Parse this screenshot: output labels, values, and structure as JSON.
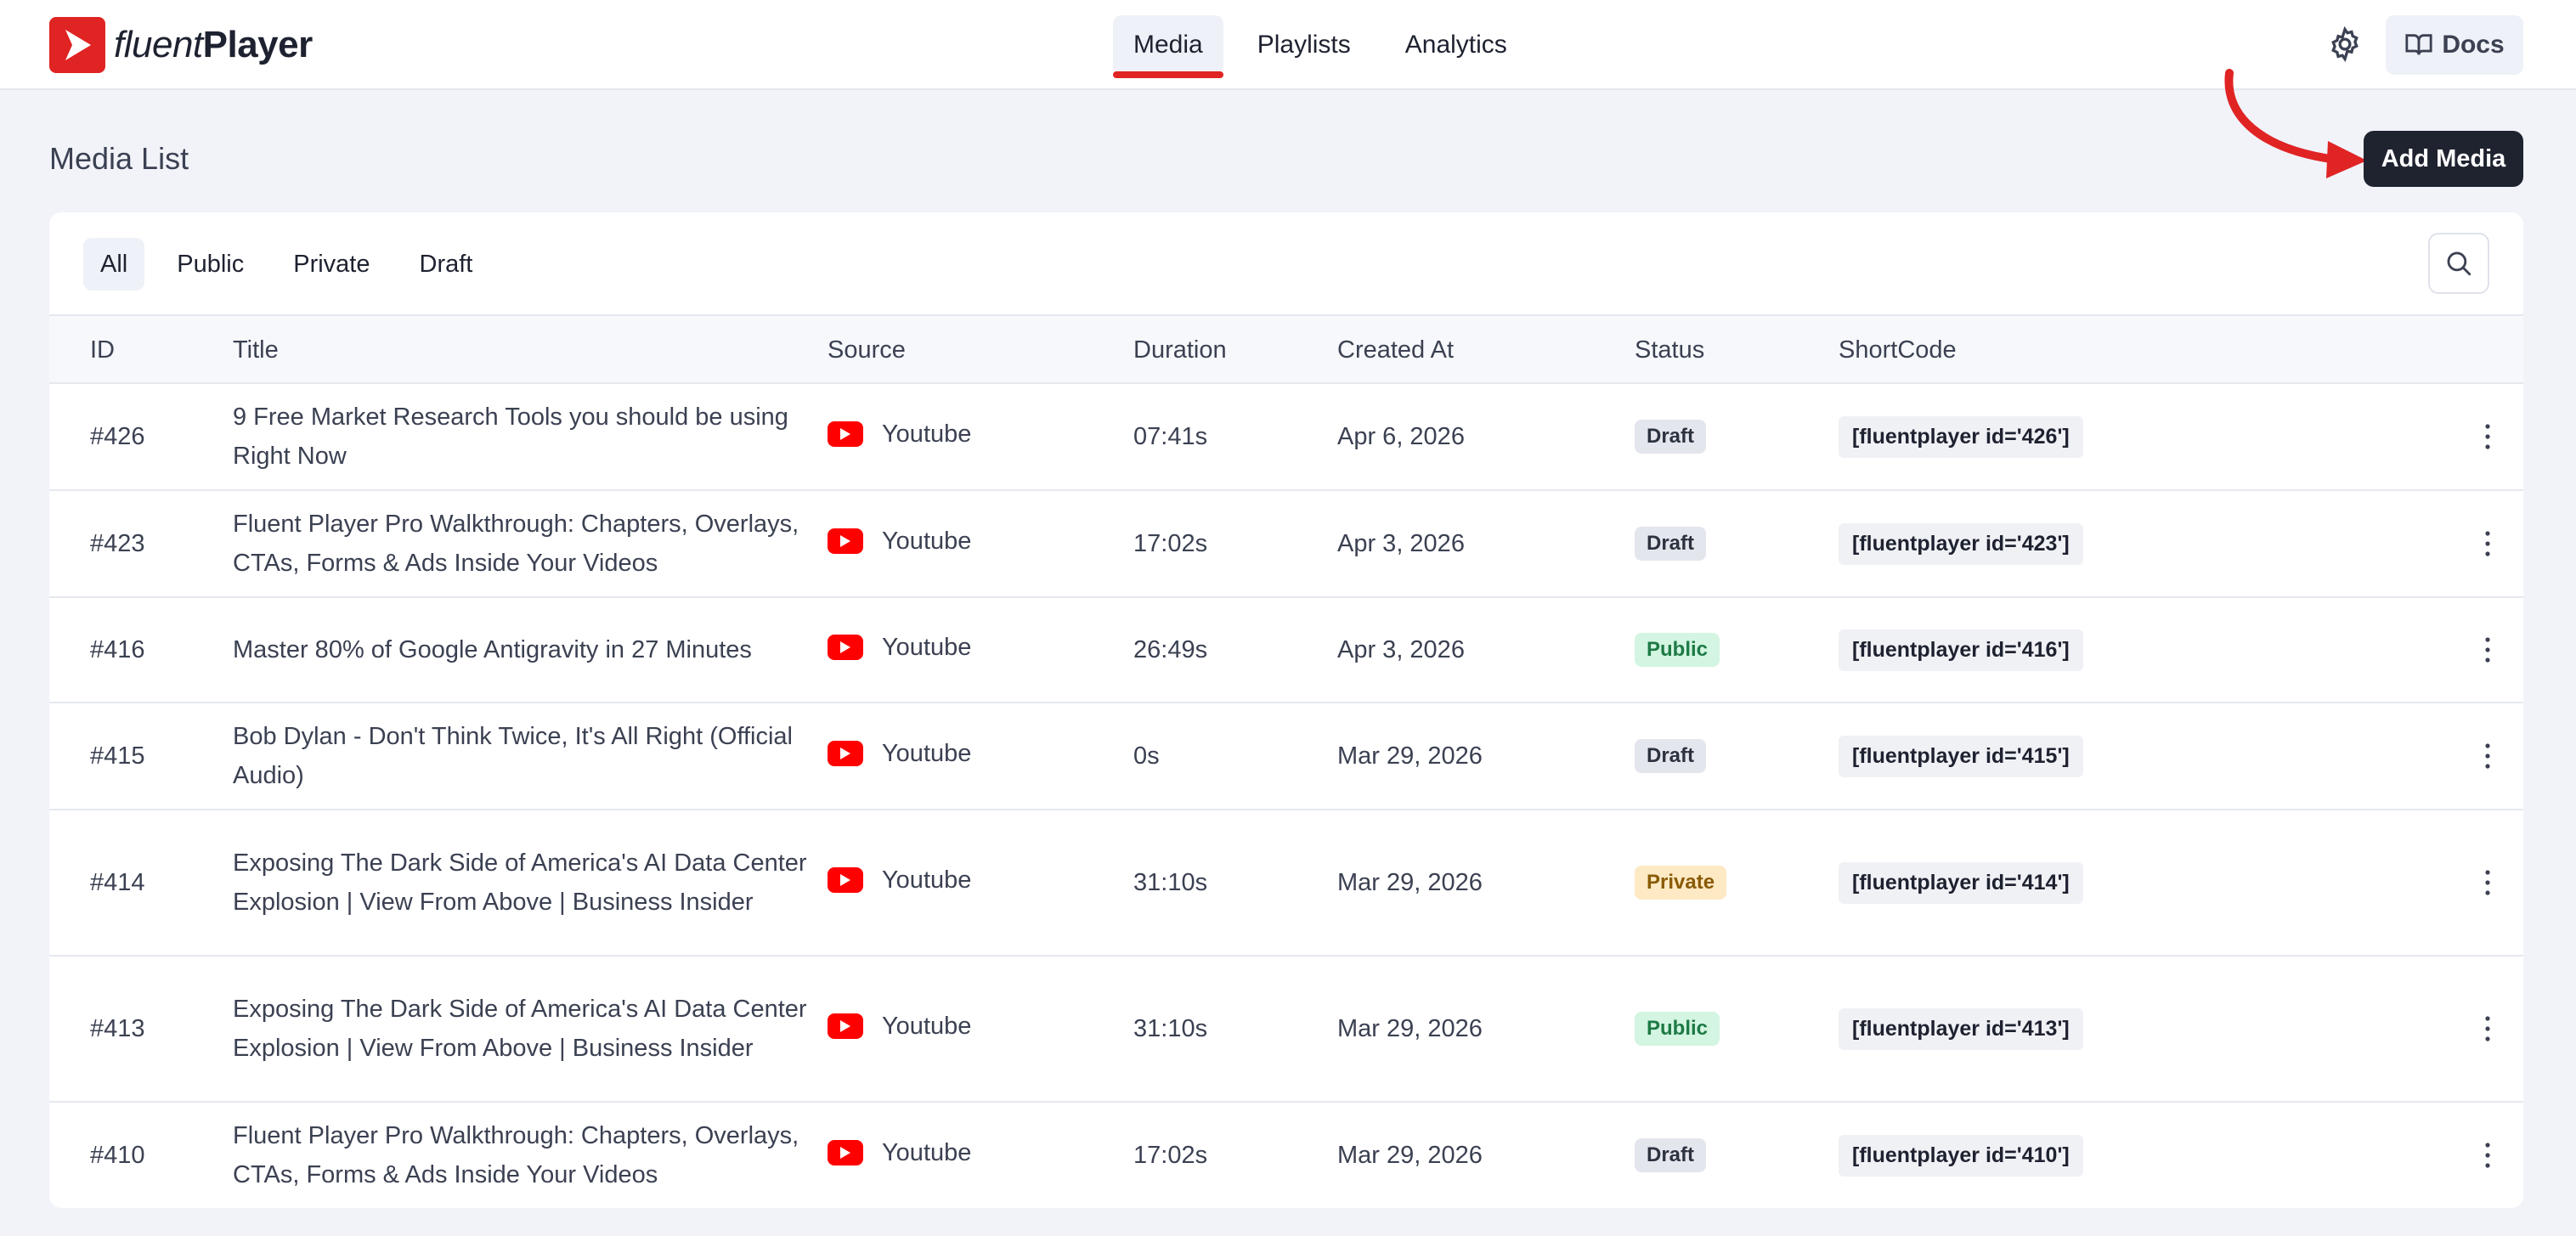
{
  "brand": {
    "name_light": "fluent",
    "name_bold": "Player",
    "color": "#e02424"
  },
  "nav": {
    "items": [
      "Media",
      "Playlists",
      "Analytics"
    ],
    "active": "Media"
  },
  "header": {
    "docs_label": "Docs",
    "settings_icon": "gear-icon"
  },
  "page": {
    "title": "Media List",
    "add_button": "Add Media"
  },
  "filters": {
    "items": [
      "All",
      "Public",
      "Private",
      "Draft"
    ],
    "active": "All"
  },
  "table": {
    "columns": [
      "ID",
      "Title",
      "Source",
      "Duration",
      "Created At",
      "Status",
      "ShortCode"
    ],
    "rows": [
      {
        "id": "#426",
        "title": "9 Free Market Research Tools you should be using Right Now",
        "source": "Youtube",
        "duration": "07:41s",
        "created": "Apr 6, 2026",
        "status": "Draft",
        "shortcode": "[fluentplayer id='426']"
      },
      {
        "id": "#423",
        "title": "Fluent Player Pro Walkthrough: Chapters, Overlays, CTAs, Forms & Ads Inside Your Videos",
        "source": "Youtube",
        "duration": "17:02s",
        "created": "Apr 3, 2026",
        "status": "Draft",
        "shortcode": "[fluentplayer id='423']"
      },
      {
        "id": "#416",
        "title": "Master 80% of Google Antigravity in 27 Minutes",
        "source": "Youtube",
        "duration": "26:49s",
        "created": "Apr 3, 2026",
        "status": "Public",
        "shortcode": "[fluentplayer id='416']"
      },
      {
        "id": "#415",
        "title": "Bob Dylan - Don't Think Twice, It's All Right (Official Audio)",
        "source": "Youtube",
        "duration": "0s",
        "created": "Mar 29, 2026",
        "status": "Draft",
        "shortcode": "[fluentplayer id='415']"
      },
      {
        "id": "#414",
        "title": "Exposing The Dark Side of America's AI Data Center Explosion | View From Above | Business Insider",
        "source": "Youtube",
        "duration": "31:10s",
        "created": "Mar 29, 2026",
        "status": "Private",
        "shortcode": "[fluentplayer id='414']"
      },
      {
        "id": "#413",
        "title": "Exposing The Dark Side of America's AI Data Center Explosion | View From Above | Business Insider",
        "source": "Youtube",
        "duration": "31:10s",
        "created": "Mar 29, 2026",
        "status": "Public",
        "shortcode": "[fluentplayer id='413']"
      },
      {
        "id": "#410",
        "title": "Fluent Player Pro Walkthrough: Chapters, Overlays, CTAs, Forms & Ads Inside Your Videos",
        "source": "Youtube",
        "duration": "17:02s",
        "created": "Mar 29, 2026",
        "status": "Draft",
        "shortcode": "[fluentplayer id='410']"
      }
    ]
  },
  "colors": {
    "accent": "#e02424",
    "youtube": "#ff0000",
    "public": "#1e7a46",
    "private": "#8a5a05",
    "button_dark": "#1f2330"
  }
}
